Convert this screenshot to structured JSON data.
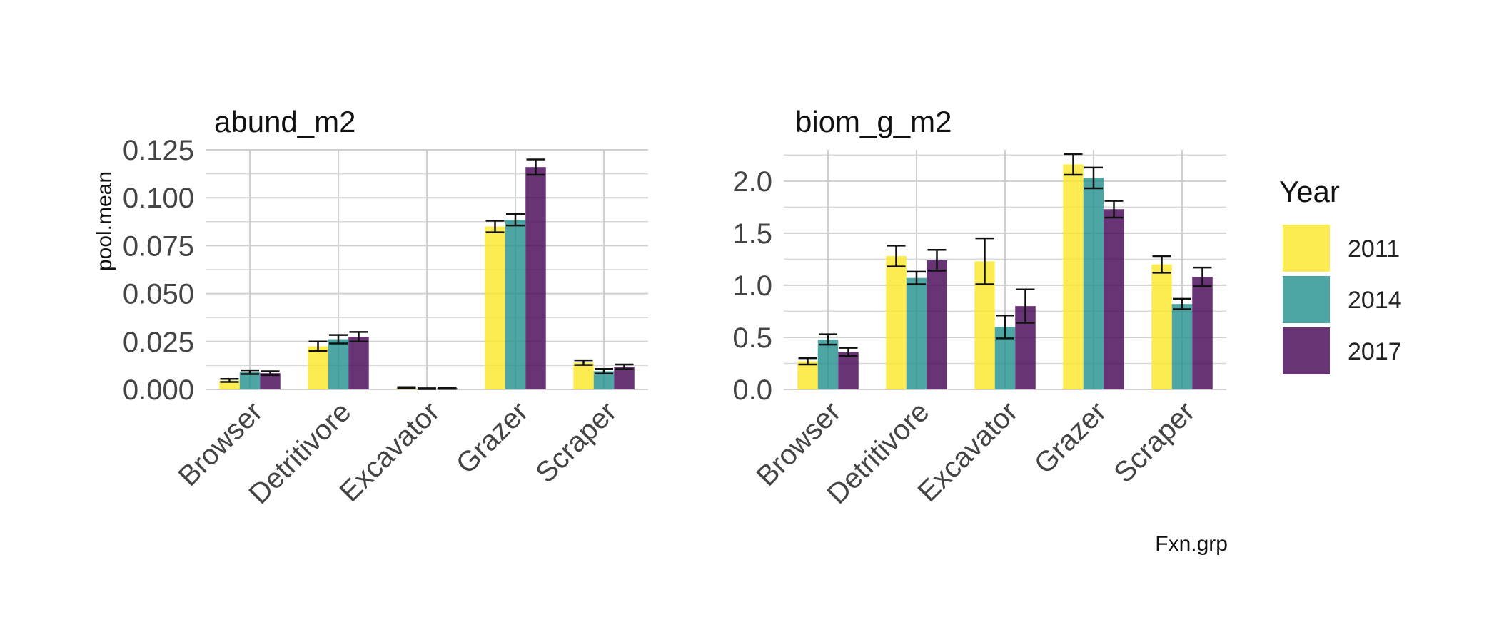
{
  "chart_data": {
    "type": "bar",
    "facet_var": "Fxn.grp",
    "xlabel": "Fxn.grp",
    "ylabel": "pool.mean",
    "categories": [
      "Browser",
      "Detritivore",
      "Excavator",
      "Grazer",
      "Scraper"
    ],
    "legend": {
      "title": "Year",
      "position": "right",
      "entries": [
        {
          "name": "2011",
          "color": "#FDE725"
        },
        {
          "name": "2014",
          "color": "#21908C"
        },
        {
          "name": "2017",
          "color": "#440154"
        }
      ]
    },
    "bar_opacity": 0.8,
    "grid": true,
    "panels": [
      {
        "title": "abund_m2",
        "ylim": [
          0,
          0.125
        ],
        "yticks": [
          "0.000",
          "0.025",
          "0.050",
          "0.075",
          "0.100",
          "0.125"
        ],
        "series": [
          {
            "name": "2011",
            "values": [
              0.0047,
              0.0225,
              0.0009,
              0.085,
              0.014
            ],
            "errors": [
              0.0008,
              0.0025,
              0.0003,
              0.003,
              0.0012
            ]
          },
          {
            "name": "2014",
            "values": [
              0.009,
              0.0262,
              0.0004,
              0.0885,
              0.0095
            ],
            "errors": [
              0.001,
              0.0022,
              0.0002,
              0.003,
              0.0012
            ]
          },
          {
            "name": "2017",
            "values": [
              0.0085,
              0.0275,
              0.0006,
              0.116,
              0.0118
            ],
            "errors": [
              0.001,
              0.0025,
              0.0003,
              0.004,
              0.0012
            ]
          }
        ]
      },
      {
        "title": "biom_g_m2",
        "ylim": [
          0,
          2.3
        ],
        "yticks": [
          "0.0",
          "0.5",
          "1.0",
          "1.5",
          "2.0"
        ],
        "series": [
          {
            "name": "2011",
            "values": [
              0.27,
              1.28,
              1.23,
              2.16,
              1.2
            ],
            "errors": [
              0.03,
              0.1,
              0.22,
              0.1,
              0.08
            ]
          },
          {
            "name": "2014",
            "values": [
              0.48,
              1.07,
              0.6,
              2.03,
              0.82
            ],
            "errors": [
              0.05,
              0.06,
              0.11,
              0.1,
              0.05
            ]
          },
          {
            "name": "2017",
            "values": [
              0.36,
              1.24,
              0.8,
              1.73,
              1.08
            ],
            "errors": [
              0.04,
              0.1,
              0.16,
              0.08,
              0.09
            ]
          }
        ]
      }
    ]
  }
}
